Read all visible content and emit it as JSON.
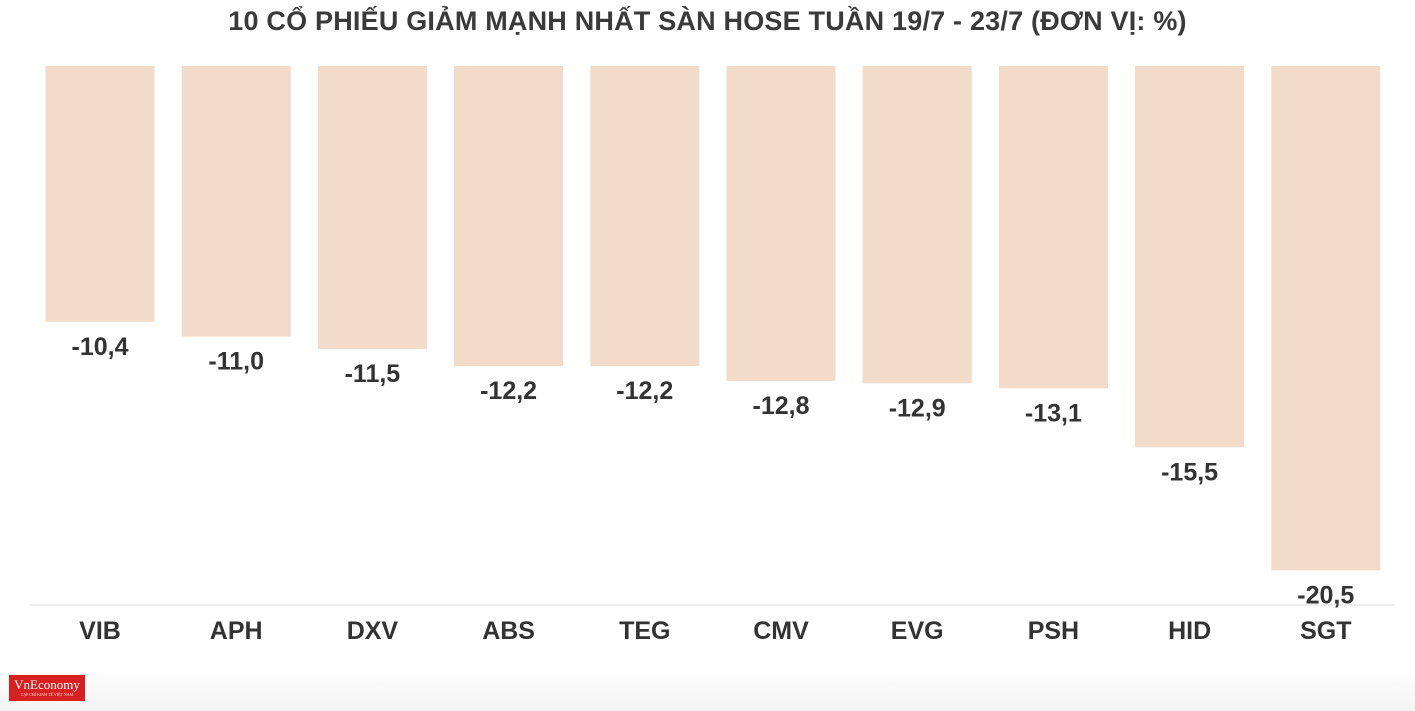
{
  "chart_data": {
    "type": "bar",
    "title": "10 CỔ PHIẾU GIẢM MẠNH NHẤT SÀN HOSE TUẦN 19/7 - 23/7 (ĐƠN VỊ: %)",
    "xlabel": "",
    "ylabel": "",
    "categories": [
      "VIB",
      "APH",
      "DXV",
      "ABS",
      "TEG",
      "CMV",
      "EVG",
      "PSH",
      "HID",
      "SGT"
    ],
    "values": [
      -10.4,
      -11.0,
      -11.5,
      -12.2,
      -12.2,
      -12.8,
      -12.9,
      -13.1,
      -15.5,
      -20.5
    ],
    "data_labels": [
      "-10,4",
      "-11,0",
      "-11,5",
      "-12,2",
      "-12,2",
      "-12,8",
      "-12,9",
      "-13,1",
      "-15,5",
      "-20,5"
    ],
    "ylim": [
      -21,
      0
    ],
    "grid": false,
    "legend": "none",
    "bar_color": "#f2dbc8",
    "label_color": "#333333",
    "axis_color": "#dddddd"
  },
  "brand": {
    "name": "VnEconomy",
    "tagline": "TẠP CHÍ KINH TẾ VIỆT NAM",
    "color": "#d7201f"
  }
}
